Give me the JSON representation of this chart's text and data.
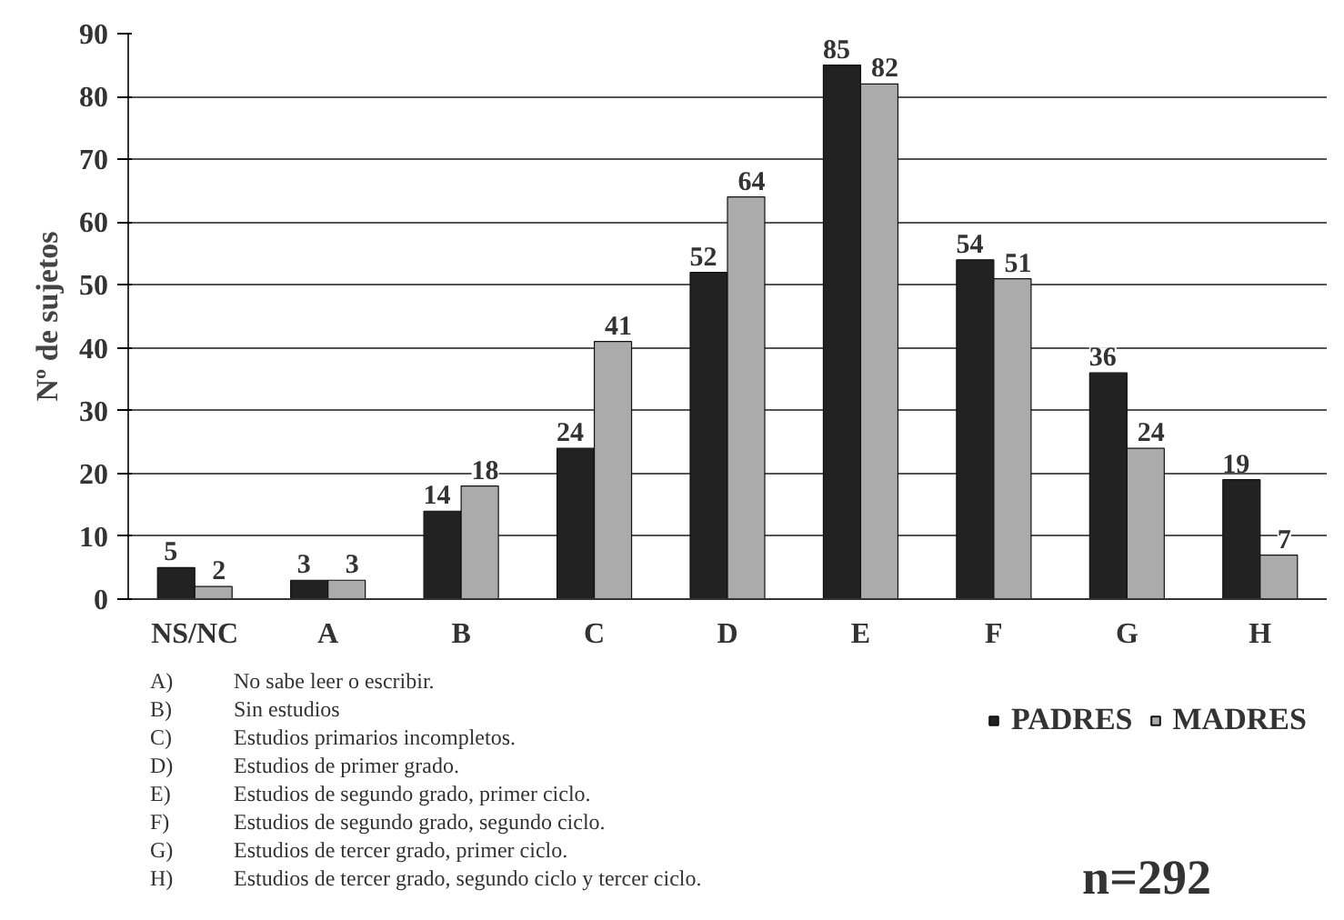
{
  "chart_data": {
    "type": "bar",
    "ylabel": "Nº de sujetos",
    "categories": [
      "NS/NC",
      "A",
      "B",
      "C",
      "D",
      "E",
      "F",
      "G",
      "H"
    ],
    "series": [
      {
        "name": "PADRES",
        "color": "#222222",
        "values": [
          5,
          3,
          14,
          24,
          52,
          85,
          54,
          36,
          19
        ]
      },
      {
        "name": "MADRES",
        "color": "#ababab",
        "values": [
          2,
          3,
          18,
          41,
          64,
          82,
          51,
          24,
          7
        ]
      }
    ],
    "ylim": [
      0,
      90
    ],
    "yticks": [
      0,
      10,
      20,
      30,
      40,
      50,
      60,
      70,
      80,
      90
    ],
    "grid": "y",
    "legend": "bottom right",
    "data_labels": true,
    "annotations": [
      "A)\tNo sabe leer o escribir.",
      "B)\tSin estudios",
      "C)\tEstudios primarios incompletos.",
      "D)\tEstudios de primer grado.",
      "E)\tEstudios de segundo grado, primer ciclo.",
      "F)\tEstudios de segundo grado, segundo ciclo.",
      "G)\tEstudios de tercer grado, primer ciclo.",
      "H)\tEstudios de tercer grado, segundo ciclo y tercer ciclo.",
      "n=292"
    ]
  }
}
